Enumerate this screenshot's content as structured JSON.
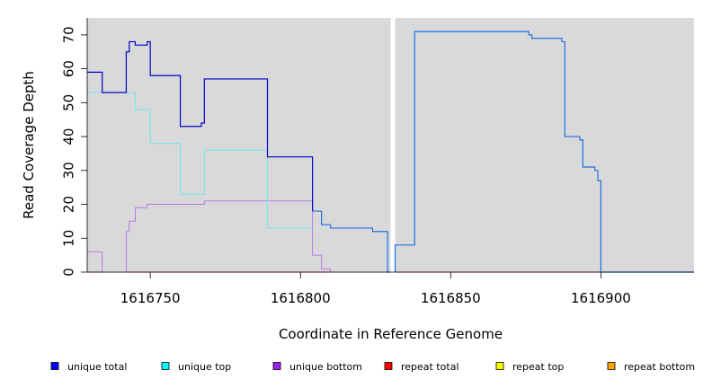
{
  "chart_data": {
    "type": "line",
    "xlabel": "Coordinate in Reference Genome",
    "ylabel": "Read Coverage Depth",
    "xlim": [
      1616729,
      1616931
    ],
    "ylim": [
      0,
      75
    ],
    "x_ticks": [
      1616750,
      1616800,
      1616850,
      1616900
    ],
    "y_ticks": [
      0,
      10,
      20,
      30,
      40,
      50,
      60,
      70
    ],
    "grid": false,
    "plot_background": "#d9d9d9",
    "gap": [
      1616830,
      1616831.5
    ],
    "legend_position": "bottom",
    "series": [
      {
        "name": "unique total",
        "legend_color": "#0000ff",
        "line_colors": [
          "#0000cc",
          "#1f6fe8"
        ],
        "color_switch_x": 1616805,
        "points": [
          [
            1616729,
            59
          ],
          [
            1616734,
            59
          ],
          [
            1616734,
            53
          ],
          [
            1616742,
            53
          ],
          [
            1616742,
            65
          ],
          [
            1616743,
            65
          ],
          [
            1616743,
            68
          ],
          [
            1616745,
            68
          ],
          [
            1616745,
            67
          ],
          [
            1616749,
            67
          ],
          [
            1616749,
            68
          ],
          [
            1616750,
            68
          ],
          [
            1616750,
            58
          ],
          [
            1616760,
            58
          ],
          [
            1616760,
            43
          ],
          [
            1616767,
            43
          ],
          [
            1616767,
            44
          ],
          [
            1616768,
            44
          ],
          [
            1616768,
            57
          ],
          [
            1616789,
            57
          ],
          [
            1616789,
            34
          ],
          [
            1616804,
            34
          ],
          [
            1616804,
            18
          ],
          [
            1616807,
            18
          ],
          [
            1616807,
            14
          ],
          [
            1616810,
            14
          ],
          [
            1616810,
            13
          ],
          [
            1616824,
            13
          ],
          [
            1616824,
            12
          ],
          [
            1616829,
            12
          ],
          [
            1616829,
            0
          ],
          [
            1616830,
            0
          ],
          null,
          [
            1616831.5,
            0
          ],
          [
            1616831.5,
            8
          ],
          [
            1616838,
            8
          ],
          [
            1616838,
            71
          ],
          [
            1616876,
            71
          ],
          [
            1616876,
            70
          ],
          [
            1616877,
            70
          ],
          [
            1616877,
            69
          ],
          [
            1616887,
            69
          ],
          [
            1616887,
            68
          ],
          [
            1616888,
            68
          ],
          [
            1616888,
            40
          ],
          [
            1616893,
            40
          ],
          [
            1616893,
            39
          ],
          [
            1616894,
            39
          ],
          [
            1616894,
            31
          ],
          [
            1616898,
            31
          ],
          [
            1616898,
            30
          ],
          [
            1616899,
            30
          ],
          [
            1616899,
            27
          ],
          [
            1616900,
            27
          ],
          [
            1616900,
            0
          ],
          [
            1616931,
            0
          ]
        ]
      },
      {
        "name": "unique top",
        "legend_color": "#00ffff",
        "line_colors": [
          "#6fe8e8"
        ],
        "points": [
          [
            1616729,
            53
          ],
          [
            1616745,
            53
          ],
          [
            1616745,
            48
          ],
          [
            1616750,
            48
          ],
          [
            1616750,
            38
          ],
          [
            1616760,
            38
          ],
          [
            1616760,
            23
          ],
          [
            1616768,
            23
          ],
          [
            1616768,
            36
          ],
          [
            1616789,
            36
          ],
          [
            1616789,
            13
          ],
          [
            1616804,
            13
          ]
        ]
      },
      {
        "name": "unique bottom",
        "legend_color": "#a020f0",
        "line_colors": [
          "#b57ae8"
        ],
        "points": [
          [
            1616729,
            6
          ],
          [
            1616734,
            6
          ],
          [
            1616734,
            0
          ],
          [
            1616742,
            0
          ],
          [
            1616742,
            12
          ],
          [
            1616743,
            12
          ],
          [
            1616743,
            15
          ],
          [
            1616745,
            15
          ],
          [
            1616745,
            19
          ],
          [
            1616749,
            19
          ],
          [
            1616749,
            20
          ],
          [
            1616768,
            20
          ],
          [
            1616768,
            21
          ],
          [
            1616804,
            21
          ],
          [
            1616804,
            5
          ],
          [
            1616807,
            5
          ],
          [
            1616807,
            1
          ],
          [
            1616810,
            1
          ],
          [
            1616810,
            0
          ],
          [
            1616829,
            0
          ]
        ]
      },
      {
        "name": "repeat total",
        "legend_color": "#ff0000",
        "line_colors": [
          "#d2143c"
        ],
        "points": [
          [
            1616729,
            0
          ],
          [
            1616830,
            0
          ],
          null,
          [
            1616831.5,
            0
          ],
          [
            1616931,
            0
          ]
        ]
      },
      {
        "name": "repeat top",
        "legend_color": "#ffff00",
        "line_colors": [
          "#e8e800"
        ],
        "points": [
          [
            1616729,
            0
          ],
          [
            1616805,
            0
          ]
        ]
      },
      {
        "name": "repeat bottom",
        "legend_color": "#ffa500",
        "line_colors": [
          "#ffa500"
        ],
        "points": [
          [
            1616729,
            0
          ],
          [
            1616805,
            0
          ]
        ]
      }
    ]
  }
}
